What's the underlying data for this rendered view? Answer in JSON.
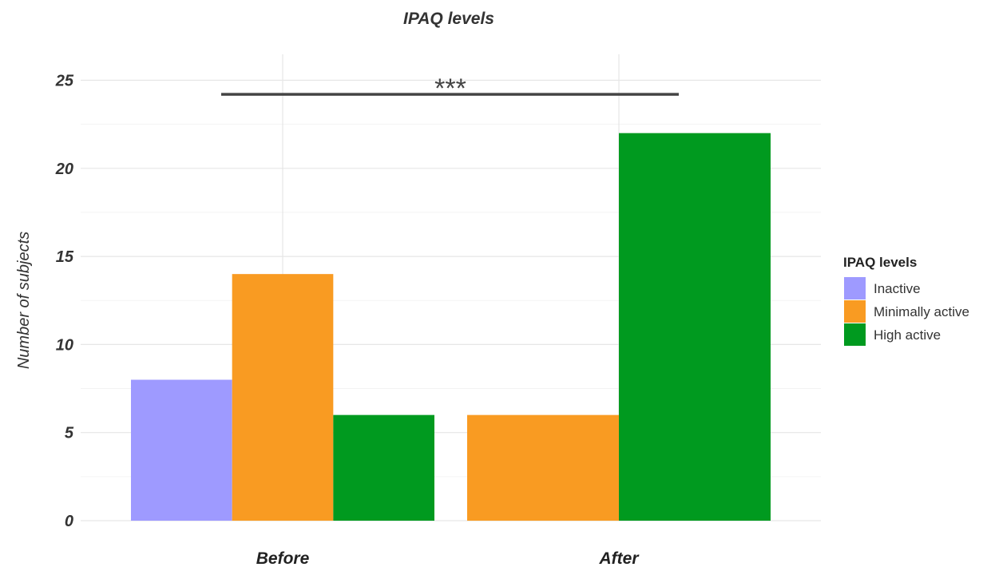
{
  "chart_data": {
    "type": "bar",
    "title": "IPAQ levels",
    "xlabel": "",
    "ylabel": "Number of subjects",
    "categories": [
      "Before",
      "After"
    ],
    "series": [
      {
        "name": "Inactive",
        "color": "#9E9AFF",
        "values": [
          8,
          0
        ]
      },
      {
        "name": "Minimally active",
        "color": "#F99B22",
        "values": [
          14,
          6
        ]
      },
      {
        "name": "High active",
        "color": "#009A1F",
        "values": [
          6,
          22
        ]
      }
    ],
    "ylim": [
      0,
      25.5
    ],
    "yticks": [
      0,
      5,
      10,
      15,
      20,
      25
    ],
    "grid": true,
    "legend": {
      "title": "IPAQ levels",
      "position": "right"
    },
    "annotation": {
      "text": "***",
      "from": "Before",
      "to": "After",
      "y": 24.2
    }
  }
}
